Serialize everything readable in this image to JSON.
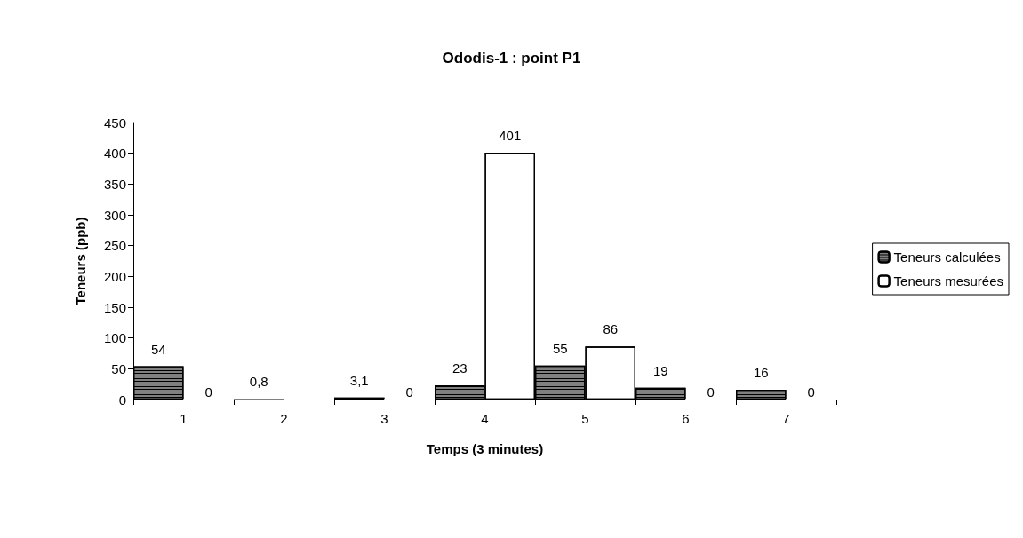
{
  "chart_data": {
    "type": "bar",
    "title": "Ododis-1 : point P1",
    "xlabel": "Temps (3 minutes)",
    "ylabel": "Teneurs (ppb)",
    "categories": [
      "1",
      "2",
      "3",
      "4",
      "5",
      "6",
      "7"
    ],
    "series": [
      {
        "name": "Teneurs calculées",
        "color": "#808080",
        "values": [
          54,
          0.8,
          3.1,
          23,
          55,
          19,
          16
        ],
        "value_labels": [
          "54",
          "0,8",
          "3,1",
          "23",
          "55",
          "19",
          "16"
        ]
      },
      {
        "name": "Teneurs mesurées",
        "color": "#ffffff",
        "values": [
          0,
          null,
          0,
          401,
          86,
          0,
          0
        ],
        "value_labels": [
          "0",
          null,
          "0",
          "401",
          "86",
          "0",
          "0"
        ]
      }
    ],
    "ylim": [
      0,
      450
    ],
    "yticks": [
      0,
      50,
      100,
      150,
      200,
      250,
      300,
      350,
      400,
      450
    ],
    "grid": false,
    "legend": "right"
  }
}
